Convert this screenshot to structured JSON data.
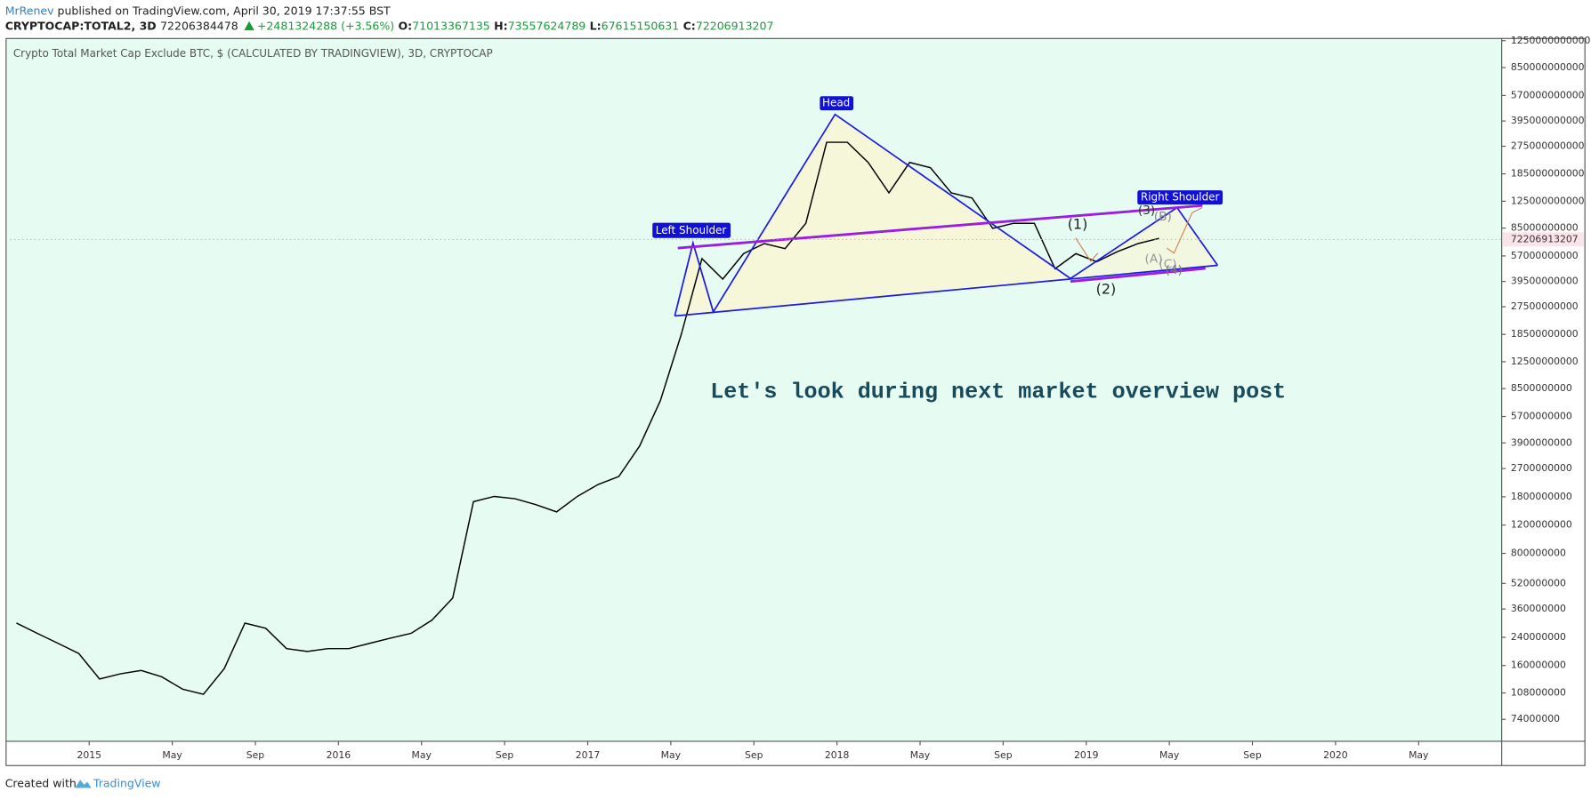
{
  "header": {
    "author": "MrRenev",
    "published": "published on TradingView.com, April 30, 2019 17:37:55 BST",
    "symbol": "CRYPTOCAP:TOTAL2, 3D",
    "last": "72206384478",
    "change": "+2481324288 (+3.56%)",
    "ohlc": [
      {
        "label": "O:",
        "value": "71013367135"
      },
      {
        "label": "H:",
        "value": "73557624789"
      },
      {
        "label": "L:",
        "value": "67615150631"
      },
      {
        "label": "C:",
        "value": "72206913207"
      }
    ]
  },
  "footer": {
    "created": "Created with",
    "brand": "TradingView"
  },
  "chart_data": {
    "type": "line",
    "title": "Crypto Total Market Cap Exclude BTC, $ (CALCULATED BY TRADINGVIEW), 3D, CRYPTOCAP",
    "categories": [
      null,
      null,
      null,
      null,
      "2015",
      null,
      null,
      null,
      "May",
      null,
      null,
      null,
      "Sep",
      null,
      null,
      null,
      "2016",
      null,
      null,
      null,
      "May",
      null,
      null,
      null,
      "Sep",
      null,
      null,
      null,
      "2017",
      null,
      null,
      null,
      "May",
      null,
      null,
      null,
      "Sep",
      null,
      null,
      null,
      "2018",
      null,
      null,
      null,
      "May",
      null,
      null,
      null,
      "Sep",
      null,
      null,
      null,
      "2019",
      null,
      null,
      null,
      "May",
      null,
      null,
      null,
      "Sep",
      null,
      null,
      null,
      "2020",
      null,
      null,
      null,
      "May",
      null,
      null,
      null
    ],
    "values": [
      294000000,
      254000000,
      220000000,
      190000000,
      132000000,
      142000000,
      149000000,
      136000000,
      114000000,
      106000000,
      153000000,
      294000000,
      273000000,
      204000000,
      196000000,
      204000000,
      204000000,
      220000000,
      237000000,
      254000000,
      307000000,
      422000000,
      1680000000,
      1810000000,
      1750000000,
      1610000000,
      1450000000,
      1810000000,
      2150000000,
      2410000000,
      3730000000,
      7180000000,
      18400000000,
      54800000000,
      40900000000,
      58900000000,
      68100000000,
      63300000000,
      91000000000,
      291000000000,
      291000000000,
      218000000000,
      141000000000,
      218000000000,
      202000000000,
      141000000000,
      131000000000,
      84700000000,
      91000000000,
      91000000000,
      47400000000,
      58900000000,
      52400000000,
      60600000000,
      68100000000,
      73300000000,
      null,
      null,
      null,
      null,
      null,
      null,
      null,
      null,
      null,
      null,
      null,
      null,
      null,
      null,
      null,
      null
    ],
    "color": "#000000",
    "log_scale": true,
    "grid": false,
    "ylim": [
      54000000,
      1290000000000
    ],
    "yticks": [
      74000000,
      108000000,
      160000000,
      240000000,
      360000000,
      520000000,
      800000000,
      1200000000,
      1800000000,
      2700000000,
      3900000000,
      5700000000,
      8500000000,
      12500000000,
      18500000000,
      27500000000,
      39500000000,
      57000000000,
      85000000000,
      125000000000,
      185000000000,
      275000000000,
      395000000000,
      570000000000,
      850000000000,
      1250000000000
    ],
    "last_price": 72206913207,
    "pattern_labels": [
      "Left Shoulder",
      "Head",
      "Right Shoulder"
    ],
    "wave_labels": [
      "(1)",
      "(2)",
      "(3)",
      "(B)",
      "(A)",
      "(C)",
      "(4)"
    ],
    "annotation": "Let's look during next market overview post"
  }
}
